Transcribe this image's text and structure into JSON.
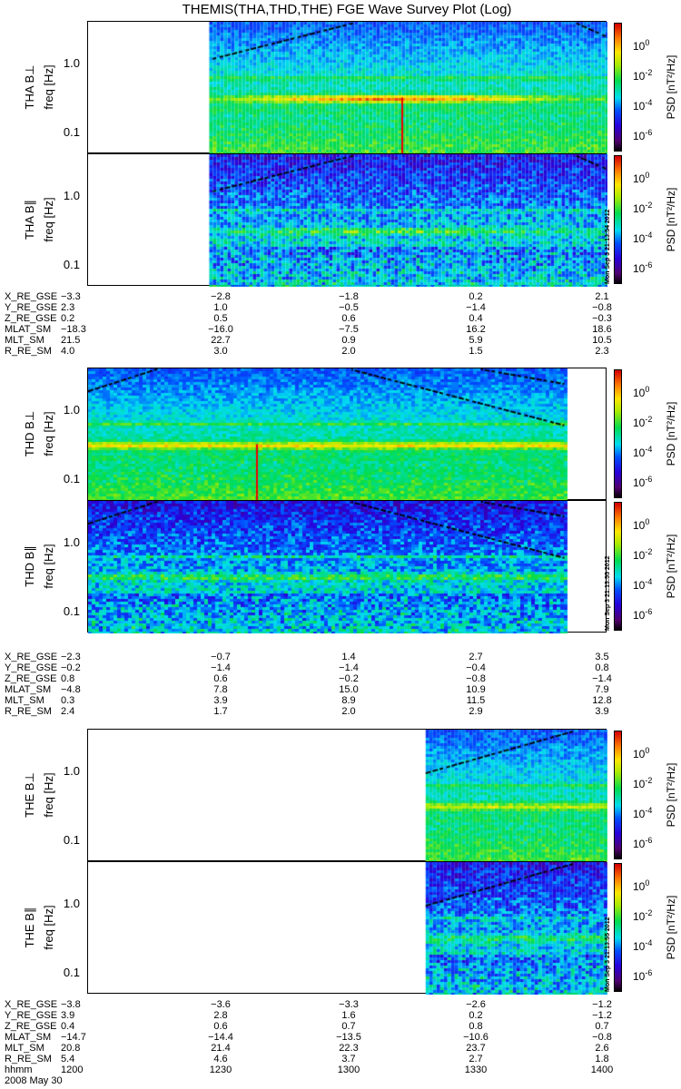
{
  "chart_data": {
    "type": "heatmap",
    "title": "THEMIS(THA,THD,THE) FGE Wave Survey Plot (Log)",
    "xlabel": "hhmm",
    "x_ticks": [
      "1200",
      "1230",
      "1300",
      "1330",
      "1400"
    ],
    "date": "2008 May 30",
    "ylim_hz": [
      0.05,
      4.1
    ],
    "y_ticks": [
      "1.0",
      "0.1"
    ],
    "ylabel": "freq [Hz]",
    "colorbar": {
      "label": "PSD [nT²/Hz]",
      "ticks": [
        "10^0",
        "10^-2",
        "10^-4",
        "10^-6"
      ],
      "range_log": [
        -7,
        1.5
      ]
    },
    "probes": [
      {
        "name": "THA",
        "stamp": "Mon Sep  3 21:13:54 2012",
        "coverage_min": [
          28,
          120
        ],
        "panels": [
          {
            "label": "THA B⊥",
            "component": "perp",
            "band_hz": 0.33,
            "band_strength": 2.8,
            "line_hz": 0.65
          },
          {
            "label": "THA B∥",
            "component": "par",
            "band_hz": 0.33,
            "band_strength": 1.6,
            "line_hz": 0.65
          }
        ],
        "ephemeris": [
          {
            "name": "X_RE_GSE",
            "values": [
              "-3.3",
              "-2.8",
              "-1.8",
              "0.2",
              "2.1"
            ]
          },
          {
            "name": "Y_RE_GSE",
            "values": [
              "2.3",
              "1.0",
              "-0.5",
              "-1.4",
              "-0.8"
            ]
          },
          {
            "name": "Z_RE_GSE",
            "values": [
              "0.2",
              "0.5",
              "0.6",
              "0.4",
              "-0.3"
            ]
          },
          {
            "name": "MLAT_SM",
            "values": [
              "-18.3",
              "-16.0",
              "-7.5",
              "16.2",
              "18.6"
            ]
          },
          {
            "name": "MLT_SM",
            "values": [
              "21.5",
              "22.7",
              "0.9",
              "5.9",
              "10.5"
            ]
          },
          {
            "name": "R_RE_SM",
            "values": [
              "4.0",
              "3.0",
              "2.0",
              "1.5",
              "2.3"
            ]
          }
        ]
      },
      {
        "name": "THD",
        "stamp": "Mon Sep  3 21:13:55 2012",
        "coverage_min": [
          0,
          110
        ],
        "panels": [
          {
            "label": "THD B⊥",
            "component": "perp",
            "band_hz": 0.33,
            "band_strength": 2.4,
            "line_hz": 0.68
          },
          {
            "label": "THD B∥",
            "component": "par",
            "band_hz": 0.34,
            "band_strength": 1.4,
            "line_hz": 0.66
          }
        ],
        "ephemeris": [
          {
            "name": "X_RE_GSE",
            "values": [
              "-2.3",
              "-0.7",
              "1.4",
              "2.7",
              "3.5"
            ]
          },
          {
            "name": "Y_RE_GSE",
            "values": [
              "-0.2",
              "-1.4",
              "-1.4",
              "-0.4",
              "0.8"
            ]
          },
          {
            "name": "Z_RE_GSE",
            "values": [
              "0.8",
              "0.6",
              "-0.2",
              "-0.8",
              "-1.4"
            ]
          },
          {
            "name": "MLAT_SM",
            "values": [
              "-4.8",
              "7.8",
              "15.0",
              "10.9",
              "7.9"
            ]
          },
          {
            "name": "MLT_SM",
            "values": [
              "0.3",
              "3.9",
              "8.9",
              "11.5",
              "12.8"
            ]
          },
          {
            "name": "R_RE_SM",
            "values": [
              "2.4",
              "1.7",
              "2.0",
              "2.9",
              "3.9"
            ]
          }
        ]
      },
      {
        "name": "THE",
        "stamp": "Mon Sep  3 21:13:55 2012",
        "coverage_min": [
          78,
          120
        ],
        "panels": [
          {
            "label": "THE B⊥",
            "component": "perp",
            "band_hz": 0.33,
            "band_strength": 1.8,
            "line_hz": 0.65
          },
          {
            "label": "THE B∥",
            "component": "par",
            "band_hz": 0.34,
            "band_strength": 1.2,
            "line_hz": 0.65
          }
        ],
        "ephemeris": [
          {
            "name": "X_RE_GSE",
            "values": [
              "-3.8",
              "-3.6",
              "-3.3",
              "-2.6",
              "-1.2"
            ]
          },
          {
            "name": "Y_RE_GSE",
            "values": [
              "3.9",
              "2.8",
              "1.6",
              "0.2",
              "-1.2"
            ]
          },
          {
            "name": "Z_RE_GSE",
            "values": [
              "0.4",
              "0.6",
              "0.7",
              "0.8",
              "0.7"
            ]
          },
          {
            "name": "MLAT_SM",
            "values": [
              "-14.7",
              "-14.4",
              "-13.5",
              "-10.6",
              "-0.8"
            ]
          },
          {
            "name": "MLT_SM",
            "values": [
              "20.8",
              "21.4",
              "22.3",
              "23.7",
              "2.6"
            ]
          },
          {
            "name": "R_RE_SM",
            "values": [
              "5.4",
              "4.6",
              "3.7",
              "2.7",
              "1.8"
            ]
          }
        ]
      }
    ]
  }
}
